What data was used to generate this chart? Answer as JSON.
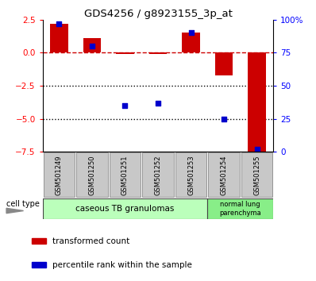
{
  "title": "GDS4256 / g8923155_3p_at",
  "samples": [
    "GSM501249",
    "GSM501250",
    "GSM501251",
    "GSM501252",
    "GSM501253",
    "GSM501254",
    "GSM501255"
  ],
  "red_bars": [
    2.2,
    1.1,
    -0.1,
    -0.1,
    1.5,
    -1.7,
    -7.5
  ],
  "blue_dots": [
    97,
    80,
    35,
    37,
    90,
    25,
    2
  ],
  "ylim_left": [
    -7.5,
    2.5
  ],
  "ylim_right": [
    0,
    100
  ],
  "yticks_left": [
    2.5,
    0.0,
    -2.5,
    -5.0,
    -7.5
  ],
  "yticks_right": [
    100,
    75,
    50,
    25,
    0
  ],
  "ytick_labels_right": [
    "100%",
    "75",
    "50",
    "25",
    "0"
  ],
  "group1_label": "caseous TB granulomas",
  "group1_n": 5,
  "group2_label": "normal lung\nparenchyma",
  "group2_n": 2,
  "group1_color": "#bbffbb",
  "group2_color": "#88ee88",
  "legend_red_label": "transformed count",
  "legend_blue_label": "percentile rank within the sample",
  "bar_color": "#cc0000",
  "dot_color": "#0000cc",
  "cell_type_label": "cell type",
  "hline_color": "#cc0000",
  "dotted_line_color": "#000000",
  "background_color": "#ffffff",
  "tick_bg": "#c8c8c8"
}
